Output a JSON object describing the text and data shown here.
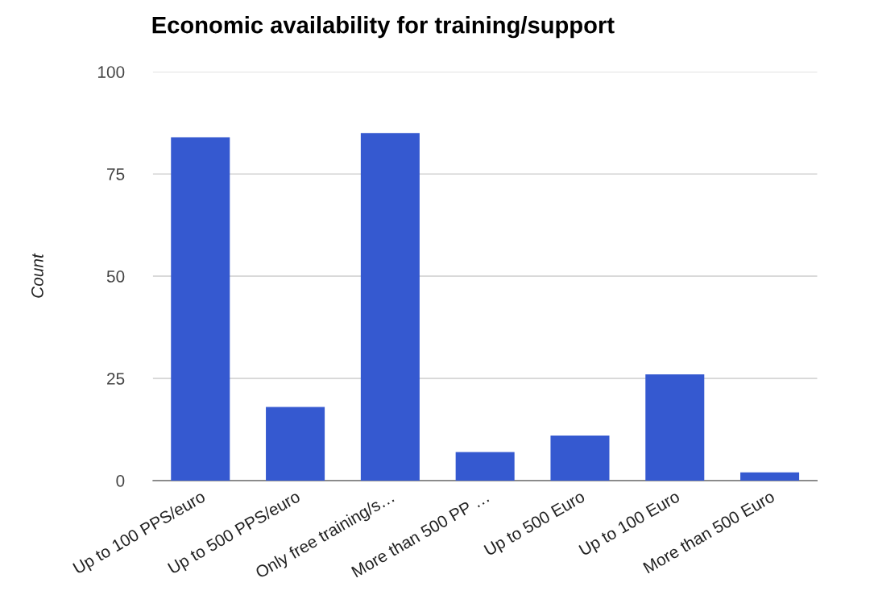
{
  "chart_data": {
    "type": "bar",
    "title": "Economic availability for training/support",
    "ylabel": "Count",
    "categories": [
      "Up to 100 PPS/euro",
      "Up to 500 PPS/euro",
      "Only free training/s…",
      "More than 500 PP …",
      "Up to 500 Euro",
      "Up to 100 Euro",
      "More than 500 Euro"
    ],
    "values": [
      84,
      18,
      85,
      7,
      11,
      26,
      2
    ],
    "color": "#3559d0",
    "ylim": [
      0,
      100
    ],
    "yticks": [
      0,
      25,
      50,
      75,
      100
    ],
    "grid": "y"
  }
}
